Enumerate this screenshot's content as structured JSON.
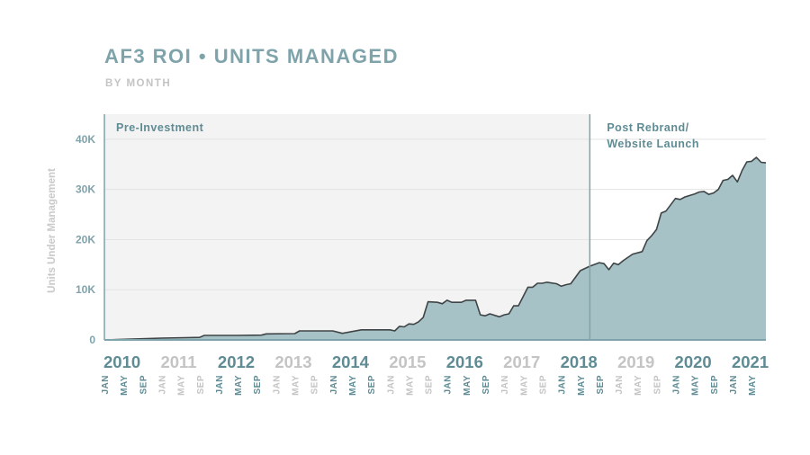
{
  "title": "AF3 ROI • UNITS MANAGED",
  "subtitle": "BY MONTH",
  "colors": {
    "accent": "#7fa3aa",
    "dark": "#5f8c94",
    "muted": "#c4c4c4",
    "area_fill": "#a6c2c6",
    "line": "#3f4446",
    "pre_region": "#f3f3f3",
    "divider": "#7fa3aa"
  },
  "chart_data": {
    "type": "area",
    "title": "AF3 ROI • UNITS MANAGED",
    "subtitle": "BY MONTH",
    "xlabel": "",
    "ylabel": "Units Under Management",
    "ylim": [
      0,
      45000
    ],
    "yticks": [
      0,
      10000,
      20000,
      30000,
      40000
    ],
    "ytick_labels": [
      "0",
      "10K",
      "20K",
      "30K",
      "40K"
    ],
    "grid": true,
    "xlim": [
      "2010-01",
      "2021-08"
    ],
    "years": [
      "2010",
      "2011",
      "2012",
      "2013",
      "2014",
      "2015",
      "2016",
      "2017",
      "2018",
      "2019",
      "2020",
      "2021"
    ],
    "highlight_years": [
      "2010",
      "2012",
      "2014",
      "2016",
      "2018",
      "2020",
      "2021"
    ],
    "month_tick_labels": [
      "JAN",
      "MAY",
      "SEP"
    ],
    "regions": [
      {
        "label": "Pre-Investment",
        "from": "2010-01",
        "to": "2018-07"
      },
      {
        "label": "Post Rebrand/ Website Launch",
        "line1": "Post Rebrand/",
        "line2": "Website Launch",
        "from": "2018-07",
        "to": "2021-08"
      }
    ],
    "series": [
      {
        "points": [
          [
            "2010-01",
            0
          ],
          [
            "2010-06",
            150
          ],
          [
            "2011-01",
            350
          ],
          [
            "2011-06",
            450
          ],
          [
            "2011-09",
            500
          ],
          [
            "2011-10",
            900
          ],
          [
            "2012-05",
            900
          ],
          [
            "2012-10",
            950
          ],
          [
            "2012-11",
            1200
          ],
          [
            "2013-05",
            1250
          ],
          [
            "2013-06",
            1800
          ],
          [
            "2014-01",
            1800
          ],
          [
            "2014-03",
            1300
          ],
          [
            "2014-07",
            2000
          ],
          [
            "2015-01",
            2000
          ],
          [
            "2015-02",
            1800
          ],
          [
            "2015-03",
            2700
          ],
          [
            "2015-04",
            2600
          ],
          [
            "2015-05",
            3200
          ],
          [
            "2015-06",
            3100
          ],
          [
            "2015-07",
            3600
          ],
          [
            "2015-08",
            4500
          ],
          [
            "2015-09",
            7600
          ],
          [
            "2015-11",
            7500
          ],
          [
            "2015-12",
            7200
          ],
          [
            "2016-01",
            7900
          ],
          [
            "2016-02",
            7500
          ],
          [
            "2016-04",
            7500
          ],
          [
            "2016-05",
            7900
          ],
          [
            "2016-07",
            7900
          ],
          [
            "2016-08",
            5000
          ],
          [
            "2016-09",
            4800
          ],
          [
            "2016-10",
            5200
          ],
          [
            "2016-12",
            4600
          ],
          [
            "2017-01",
            5000
          ],
          [
            "2017-02",
            5200
          ],
          [
            "2017-03",
            6800
          ],
          [
            "2017-04",
            6800
          ],
          [
            "2017-06",
            10500
          ],
          [
            "2017-07",
            10500
          ],
          [
            "2017-08",
            11300
          ],
          [
            "2017-09",
            11300
          ],
          [
            "2017-10",
            11500
          ],
          [
            "2017-12",
            11200
          ],
          [
            "2018-01",
            10700
          ],
          [
            "2018-02",
            11000
          ],
          [
            "2018-03",
            11200
          ],
          [
            "2018-05",
            13800
          ],
          [
            "2018-07",
            14700
          ],
          [
            "2018-09",
            15400
          ],
          [
            "2018-10",
            15200
          ],
          [
            "2018-11",
            14000
          ],
          [
            "2018-12",
            15300
          ],
          [
            "2019-01",
            15000
          ],
          [
            "2019-02",
            15800
          ],
          [
            "2019-04",
            17100
          ],
          [
            "2019-06",
            17600
          ],
          [
            "2019-07",
            19800
          ],
          [
            "2019-08",
            20800
          ],
          [
            "2019-09",
            22000
          ],
          [
            "2019-10",
            25300
          ],
          [
            "2019-11",
            25700
          ],
          [
            "2020-01",
            28200
          ],
          [
            "2020-02",
            28000
          ],
          [
            "2020-03",
            28500
          ],
          [
            "2020-04",
            28800
          ],
          [
            "2020-05",
            29100
          ],
          [
            "2020-06",
            29500
          ],
          [
            "2020-07",
            29600
          ],
          [
            "2020-08",
            29000
          ],
          [
            "2020-09",
            29300
          ],
          [
            "2020-10",
            30000
          ],
          [
            "2020-11",
            31800
          ],
          [
            "2020-12",
            32000
          ],
          [
            "2021-01",
            32800
          ],
          [
            "2021-02",
            31500
          ],
          [
            "2021-03",
            33800
          ],
          [
            "2021-04",
            35500
          ],
          [
            "2021-05",
            35600
          ],
          [
            "2021-06",
            36400
          ],
          [
            "2021-07",
            35400
          ],
          [
            "2021-08",
            35300
          ]
        ]
      }
    ]
  }
}
